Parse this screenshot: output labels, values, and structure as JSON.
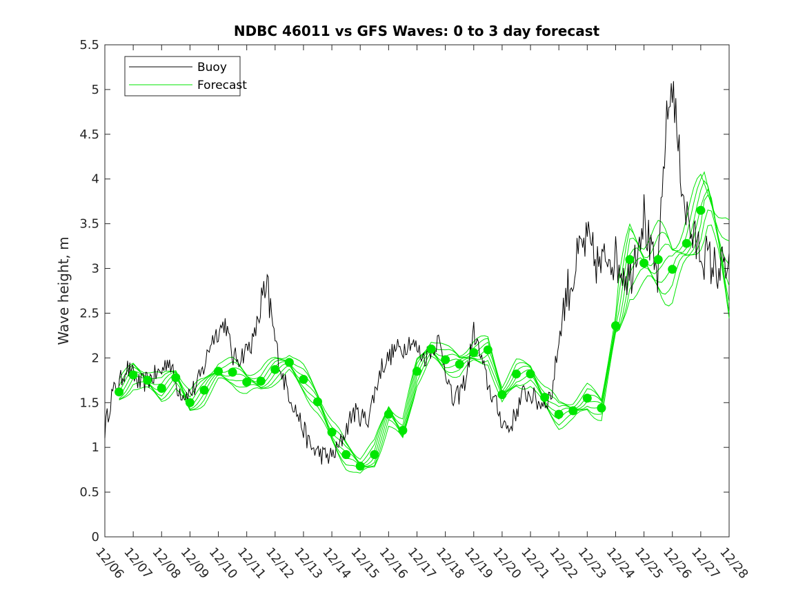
{
  "chart_data": {
    "type": "line",
    "title": "NDBC 46011 vs GFS Waves: 0 to 3 day forecast",
    "xlabel": "",
    "ylabel": "Wave height, m",
    "xlim": [
      0,
      22
    ],
    "ylim": [
      0,
      5.5
    ],
    "yticks": [
      "0",
      "0.5",
      "1",
      "1.5",
      "2",
      "2.5",
      "3",
      "3.5",
      "4",
      "4.5",
      "5",
      "5.5"
    ],
    "xticks": [
      "12/06",
      "12/07",
      "12/08",
      "12/09",
      "12/10",
      "12/11",
      "12/12",
      "12/13",
      "12/14",
      "12/15",
      "12/16",
      "12/17",
      "12/18",
      "12/19",
      "12/20",
      "12/21",
      "12/22",
      "12/23",
      "12/24",
      "12/25",
      "12/26",
      "12/27",
      "12/28"
    ],
    "legend": {
      "position": "top-left",
      "entries": [
        "Buoy",
        "Forecast"
      ]
    },
    "colors": {
      "buoy": "#000000",
      "forecast": "#00e600",
      "axis": "#262626"
    },
    "series": [
      {
        "name": "Buoy",
        "x": [
          0,
          0.25,
          0.5,
          0.75,
          1,
          1.25,
          1.5,
          1.75,
          2,
          2.25,
          2.5,
          2.75,
          3,
          3.25,
          3.5,
          3.75,
          4,
          4.25,
          4.5,
          4.75,
          5,
          5.25,
          5.5,
          5.75,
          6,
          6.25,
          6.5,
          6.75,
          7,
          7.25,
          7.5,
          7.75,
          8,
          8.25,
          8.5,
          8.75,
          9,
          9.25,
          9.5,
          9.75,
          10,
          10.25,
          10.5,
          10.75,
          11,
          11.25,
          11.5,
          11.75,
          12,
          12.25,
          12.5,
          12.75,
          13,
          13.25,
          13.5,
          13.75,
          14,
          14.25,
          14.5,
          14.75,
          15,
          15.25,
          15.5,
          15.75,
          16,
          16.25,
          16.5,
          16.75,
          17,
          17.25,
          17.5,
          17.75,
          18,
          18.25,
          18.5,
          18.75,
          19,
          19.25,
          19.5,
          19.75,
          20,
          20.25,
          20.5,
          20.75,
          21,
          21.25,
          21.5,
          21.75,
          22
        ],
        "values": [
          1.2,
          1.6,
          1.7,
          1.9,
          1.8,
          1.7,
          1.75,
          1.8,
          1.85,
          2.0,
          1.7,
          1.6,
          1.6,
          1.7,
          1.9,
          2.2,
          2.3,
          2.4,
          2.0,
          2.0,
          2.1,
          2.2,
          2.6,
          2.7,
          2.2,
          1.8,
          1.6,
          1.4,
          1.2,
          1.0,
          0.95,
          0.9,
          0.9,
          1.0,
          1.2,
          1.4,
          1.35,
          1.3,
          1.6,
          1.9,
          2.0,
          2.1,
          2.1,
          2.2,
          2.1,
          2.0,
          2.1,
          2.2,
          1.9,
          1.5,
          1.6,
          1.8,
          2.3,
          2.0,
          1.7,
          1.5,
          1.3,
          1.2,
          1.4,
          1.6,
          1.6,
          1.5,
          1.5,
          1.6,
          2.2,
          2.7,
          2.9,
          3.2,
          3.3,
          3.1,
          3.0,
          3.2,
          3.1,
          3.0,
          2.9,
          3.3,
          3.6,
          3.1,
          2.9,
          4.5,
          5.1,
          4.2,
          3.6,
          3.3,
          3.2,
          3.1,
          3.0,
          3.0,
          3.0
        ],
        "color": "#000000"
      },
      {
        "name": "Forecast",
        "x": [
          0.5,
          1.0,
          1.5,
          2.0,
          2.5,
          3.0,
          3.5,
          4.0,
          4.5,
          5.0,
          5.5,
          6.0,
          6.5,
          7.0,
          7.5,
          8.0,
          8.5,
          9.0,
          9.5,
          10.0,
          10.5,
          11.0,
          11.5,
          12.0,
          12.5,
          13.0,
          13.5,
          14.0,
          14.5,
          15.0,
          15.5,
          16.0,
          16.5,
          17.0,
          17.5,
          18.0,
          18.5,
          19.0,
          19.5,
          20.0,
          20.5,
          21.0
        ],
        "values": [
          1.62,
          1.81,
          1.75,
          1.66,
          1.78,
          1.5,
          1.64,
          1.85,
          1.84,
          1.73,
          1.74,
          1.87,
          1.95,
          1.76,
          1.51,
          1.17,
          0.92,
          0.79,
          0.92,
          1.37,
          1.19,
          1.85,
          2.1,
          1.98,
          1.93,
          2.06,
          2.09,
          1.59,
          1.82,
          1.82,
          1.56,
          1.37,
          1.41,
          1.55,
          1.44,
          2.36,
          3.1,
          3.06,
          3.1,
          2.99,
          3.28,
          3.65
        ],
        "color": "#00e600"
      }
    ]
  }
}
